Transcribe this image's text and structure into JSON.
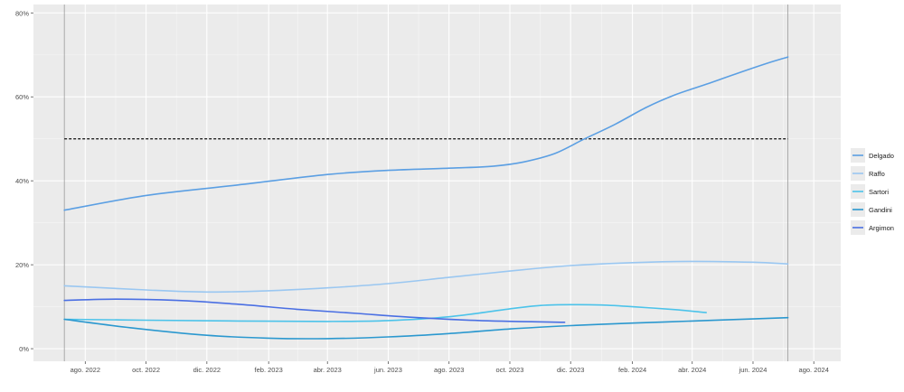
{
  "chart_data": {
    "type": "line",
    "title": "",
    "xlabel": "",
    "ylabel": "",
    "xlim": [
      "2022-06-10",
      "2024-08-28"
    ],
    "ylim": [
      -3,
      82
    ],
    "grid": true,
    "legend_position": "right",
    "x_ticks": [
      {
        "date": "2022-08-01",
        "label": "ago. 2022"
      },
      {
        "date": "2022-10-01",
        "label": "oct. 2022"
      },
      {
        "date": "2022-12-01",
        "label": "dic. 2022"
      },
      {
        "date": "2023-02-01",
        "label": "feb. 2023"
      },
      {
        "date": "2023-04-01",
        "label": "abr. 2023"
      },
      {
        "date": "2023-06-01",
        "label": "jun. 2023"
      },
      {
        "date": "2023-08-01",
        "label": "ago. 2023"
      },
      {
        "date": "2023-10-01",
        "label": "oct. 2023"
      },
      {
        "date": "2023-12-01",
        "label": "dic. 2023"
      },
      {
        "date": "2024-02-01",
        "label": "feb. 2024"
      },
      {
        "date": "2024-04-01",
        "label": "abr. 2024"
      },
      {
        "date": "2024-06-01",
        "label": "jun. 2024"
      },
      {
        "date": "2024-08-01",
        "label": "ago. 2024"
      }
    ],
    "y_ticks": [
      {
        "value": 0,
        "label": "0%"
      },
      {
        "value": 20,
        "label": "20%"
      },
      {
        "value": 40,
        "label": "40%"
      },
      {
        "value": 60,
        "label": "60%"
      },
      {
        "value": 80,
        "label": "80%"
      }
    ],
    "vertical_lines": [
      "2022-07-11",
      "2024-07-06"
    ],
    "reference_line": {
      "y": 50,
      "x_start": "2022-07-11",
      "x_end": "2024-07-06",
      "style": "dashed"
    },
    "series": [
      {
        "name": "Delgado",
        "color": "#5b9fe3",
        "x": [
          "2022-07-11",
          "2022-10-01",
          "2023-01-01",
          "2023-04-01",
          "2023-06-01",
          "2023-08-01",
          "2023-09-15",
          "2023-10-15",
          "2023-11-15",
          "2023-12-15",
          "2024-01-15",
          "2024-02-15",
          "2024-03-15",
          "2024-04-15",
          "2024-05-15",
          "2024-06-15",
          "2024-07-06"
        ],
        "values": [
          33,
          36.5,
          39,
          41.5,
          42.5,
          43,
          43.5,
          44.5,
          46.5,
          50,
          53.5,
          57.5,
          60.5,
          63,
          65.5,
          68,
          69.5
        ]
      },
      {
        "name": "Raffo",
        "color": "#9ac7f1",
        "x": [
          "2022-07-11",
          "2022-10-01",
          "2022-12-01",
          "2023-02-01",
          "2023-04-01",
          "2023-06-01",
          "2023-08-01",
          "2023-10-01",
          "2023-12-01",
          "2024-02-01",
          "2024-04-01",
          "2024-06-01",
          "2024-07-06"
        ],
        "values": [
          15,
          14,
          13.5,
          13.8,
          14.5,
          15.5,
          17,
          18.5,
          19.8,
          20.5,
          20.8,
          20.6,
          20.2
        ]
      },
      {
        "name": "Sartori",
        "color": "#4cc3ea",
        "x": [
          "2022-07-11",
          "2022-10-01",
          "2023-01-01",
          "2023-04-01",
          "2023-06-01",
          "2023-08-01",
          "2023-10-01",
          "2023-11-01",
          "2023-12-01",
          "2024-01-01",
          "2024-02-01",
          "2024-03-15",
          "2024-04-15"
        ],
        "values": [
          7,
          6.8,
          6.6,
          6.5,
          6.7,
          7.6,
          9.5,
          10.3,
          10.5,
          10.4,
          10,
          9.3,
          8.6
        ]
      },
      {
        "name": "Gandini",
        "color": "#2b98cf",
        "x": [
          "2022-07-11",
          "2022-09-15",
          "2022-12-01",
          "2023-02-01",
          "2023-04-01",
          "2023-06-01",
          "2023-08-01",
          "2023-10-01",
          "2023-12-01",
          "2024-02-01",
          "2024-04-01",
          "2024-06-01",
          "2024-07-06"
        ],
        "values": [
          7,
          5,
          3.2,
          2.5,
          2.4,
          2.8,
          3.6,
          4.7,
          5.5,
          6.1,
          6.6,
          7.1,
          7.4
        ]
      },
      {
        "name": "Argimon",
        "color": "#4a6fe3",
        "x": [
          "2022-07-11",
          "2022-09-01",
          "2022-11-01",
          "2023-01-01",
          "2023-03-01",
          "2023-05-01",
          "2023-07-01",
          "2023-09-01",
          "2023-11-25"
        ],
        "values": [
          11.5,
          11.8,
          11.5,
          10.6,
          9.4,
          8.4,
          7.4,
          6.7,
          6.3
        ]
      }
    ]
  }
}
